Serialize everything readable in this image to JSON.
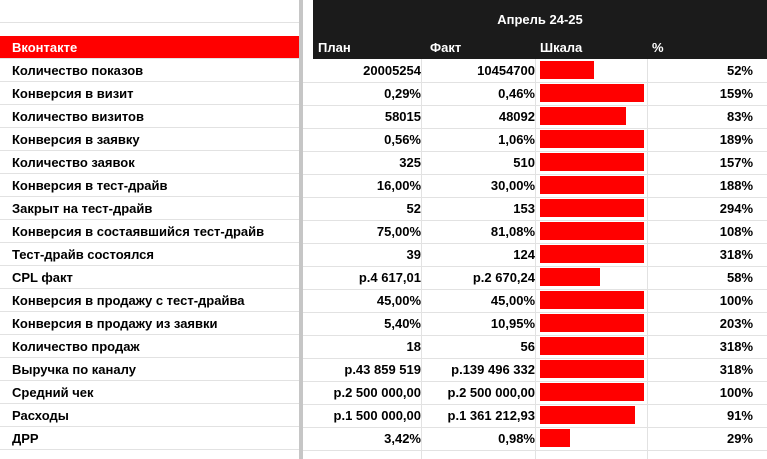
{
  "header": {
    "period": "Апрель 24-25",
    "section_label": "Вконтакте",
    "columns": [
      "План",
      "Факт",
      "Шкала",
      "%"
    ]
  },
  "rows": [
    {
      "label": "Количество показов",
      "plan": "20005254",
      "fact": "10454700",
      "scale": 0.52,
      "pct": "52%"
    },
    {
      "label": "Конверсия в визит",
      "plan": "0,29%",
      "fact": "0,46%",
      "scale": 1.0,
      "pct": "159%"
    },
    {
      "label": "Количество визитов",
      "plan": "58015",
      "fact": "48092",
      "scale": 0.83,
      "pct": "83%"
    },
    {
      "label": "Конверсия в заявку",
      "plan": "0,56%",
      "fact": "1,06%",
      "scale": 1.0,
      "pct": "189%"
    },
    {
      "label": "Количество заявок",
      "plan": "325",
      "fact": "510",
      "scale": 1.0,
      "pct": "157%"
    },
    {
      "label": "Конверсия в тест-драйв",
      "plan": "16,00%",
      "fact": "30,00%",
      "scale": 1.0,
      "pct": "188%"
    },
    {
      "label": "Закрыт на тест-драйв",
      "plan": "52",
      "fact": "153",
      "scale": 1.0,
      "pct": "294%"
    },
    {
      "label": "Конверсия в состаявшийся тест-драйв",
      "plan": "75,00%",
      "fact": "81,08%",
      "scale": 1.0,
      "pct": "108%"
    },
    {
      "label": "Тест-драйв состоялся",
      "plan": "39",
      "fact": "124",
      "scale": 1.0,
      "pct": "318%"
    },
    {
      "label": "CPL факт",
      "plan": "р.4 617,01",
      "fact": "р.2 670,24",
      "scale": 0.58,
      "pct": "58%"
    },
    {
      "label": "Конверсия в продажу с тест-драйва",
      "plan": "45,00%",
      "fact": "45,00%",
      "scale": 1.0,
      "pct": "100%"
    },
    {
      "label": "Конверсия в продажу из заявки",
      "plan": "5,40%",
      "fact": "10,95%",
      "scale": 1.0,
      "pct": "203%"
    },
    {
      "label": "Количество продаж",
      "plan": "18",
      "fact": "56",
      "scale": 1.0,
      "pct": "318%"
    },
    {
      "label": "Выручка по каналу",
      "plan": "р.43 859 519",
      "fact": "р.139 496 332",
      "scale": 1.0,
      "pct": "318%"
    },
    {
      "label": "Средний чек",
      "plan": "р.2 500 000,00",
      "fact": "р.2 500 000,00",
      "scale": 1.0,
      "pct": "100%"
    },
    {
      "label": "Расходы",
      "plan": "р.1 500 000,00",
      "fact": "р.1 361 212,93",
      "scale": 0.91,
      "pct": "91%"
    },
    {
      "label": "ДРР",
      "plan": "3,42%",
      "fact": "0,98%",
      "scale": 0.29,
      "pct": "29%"
    }
  ],
  "colors": {
    "bar": "#ff0000",
    "header_dark": "#1b1b1b",
    "section_red": "#ff0000"
  }
}
